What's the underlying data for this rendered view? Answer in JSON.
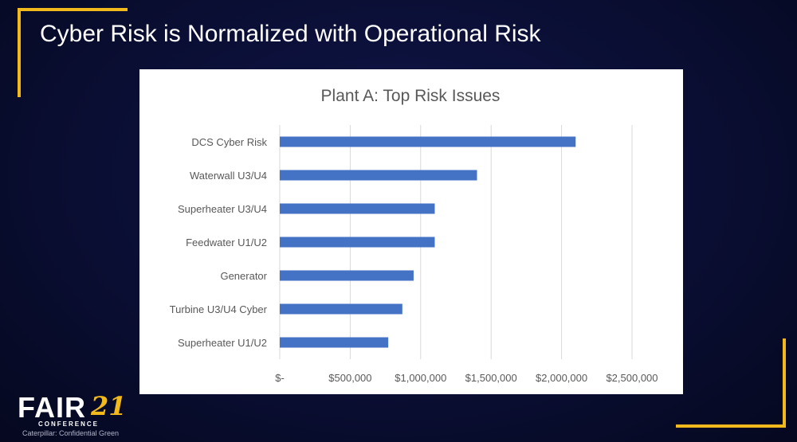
{
  "slide": {
    "title": "Cyber Risk is Normalized with Operational Risk",
    "accent_color": "#f2b91c",
    "background_color": "#0a0e33"
  },
  "logo": {
    "main_text": "FAIR",
    "year_text": "21",
    "sub_text": "CONFERENCE",
    "classification": "Caterpillar: Confidential Green"
  },
  "chart_data": {
    "type": "bar",
    "orientation": "horizontal",
    "title": "Plant A: Top Risk Issues",
    "xlabel": "",
    "ylabel": "",
    "categories": [
      "DCS Cyber Risk",
      "Waterwall U3/U4",
      "Superheater U3/U4",
      "Feedwater U1/U2",
      "Generator",
      "Turbine U3/U4 Cyber",
      "Superheater U1/U2"
    ],
    "values": [
      2100000,
      1400000,
      1100000,
      1100000,
      950000,
      870000,
      770000
    ],
    "xlim": [
      0,
      2500000
    ],
    "x_ticks": [
      0,
      500000,
      1000000,
      1500000,
      2000000,
      2500000
    ],
    "x_tick_labels": [
      "$-",
      "$500,000",
      "$1,000,000",
      "$1,500,000",
      "$2,000,000",
      "$2,500,000"
    ],
    "bar_color": "#4472c4",
    "gridlines": true,
    "legend": "none"
  }
}
